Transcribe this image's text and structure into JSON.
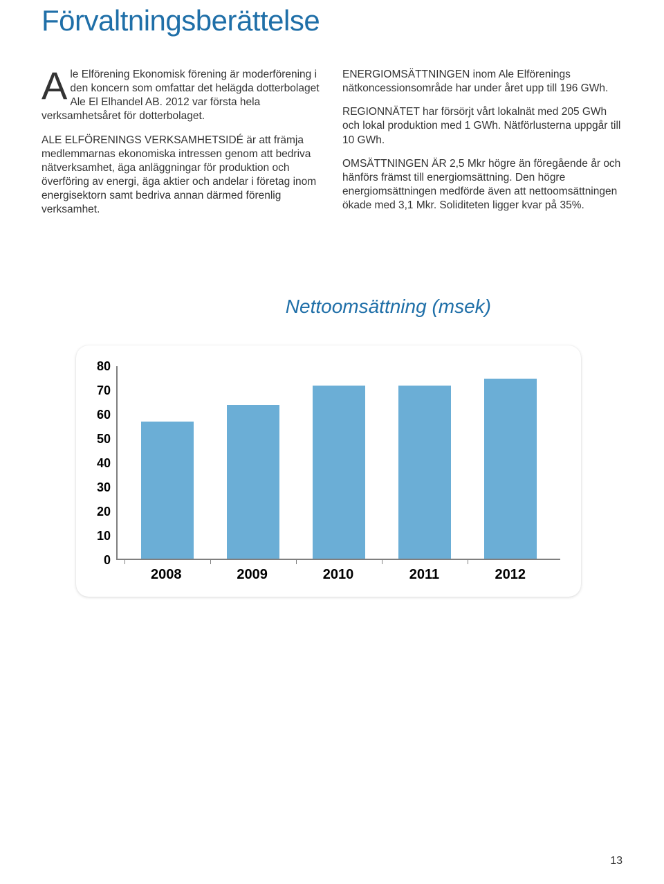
{
  "title": "Förvaltningsberättelse",
  "title_color": "#1f6fa8",
  "left_column": {
    "dropcap": "A",
    "p1": "le Elförening Ekonomisk förening är moderförening i den koncern som omfattar det helägda dotterbolaget Ale El Elhandel AB. 2012 var första hela verksamhetsåret för dotterbolaget.",
    "p2": "ALE ELFÖRENINGS VERKSAMHETSIDÉ är att främja medlemmarnas ekonomiska intressen genom att bedriva nätverksamhet, äga anläggningar för produktion och överföring av energi, äga aktier och andelar i företag inom energisektorn samt bedriva annan därmed förenlig verksamhet."
  },
  "right_column": {
    "p1": "ENERGIOMSÄTTNINGEN inom Ale Elförenings nätkoncessionsområde har under året upp till 196 GWh.",
    "p2": "REGIONNÄTET har försörjt vårt lokalnät med 205 GWh och lokal produktion med 1 GWh. Nätförlusterna uppgår till 10 GWh.",
    "p3": "OMSÄTTNINGEN ÄR 2,5 Mkr högre än föregående år och hänförs främst till energiomsättning. Den högre energiomsättningen medförde även att nettoomsättningen ökade med 3,1 Mkr. Soliditeten ligger kvar på 35%."
  },
  "chart": {
    "title": "Nettoomsättning (msek)",
    "title_color": "#1f6fa8",
    "type": "bar",
    "categories": [
      "2008",
      "2009",
      "2010",
      "2011",
      "2012"
    ],
    "values": [
      57,
      64,
      72,
      72,
      75
    ],
    "bar_color": "#6baed6",
    "ylim_min": 0,
    "ylim_max": 80,
    "ytick_step": 10,
    "y_ticks": [
      "80",
      "70",
      "60",
      "50",
      "40",
      "30",
      "20",
      "10",
      "0"
    ],
    "axis_color": "#7f7f7f",
    "background_color": "#ffffff",
    "font_color": "#000000",
    "font_weight": "700",
    "card_radius": 18
  },
  "page_number": "13"
}
